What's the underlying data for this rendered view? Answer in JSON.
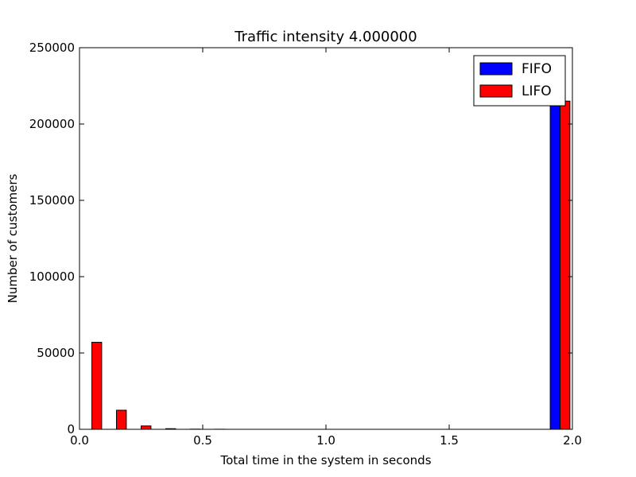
{
  "chart_data": {
    "type": "bar",
    "title": "Traffic intensity 4.000000",
    "xlabel": "Total time in the system in seconds",
    "ylabel": "Number of customers",
    "xlim": [
      0.0,
      2.0
    ],
    "ylim": [
      0,
      250000
    ],
    "x_ticks": [
      "0.0",
      "0.5",
      "1.0",
      "1.5",
      "2.0"
    ],
    "y_ticks": [
      "0",
      "50000",
      "100000",
      "150000",
      "200000",
      "250000"
    ],
    "bin_width": 0.1,
    "bin_starts": [
      0.0,
      0.1,
      0.2,
      0.3,
      0.4,
      0.5,
      0.6,
      0.7,
      0.8,
      0.9,
      1.0,
      1.1,
      1.2,
      1.3,
      1.4,
      1.5,
      1.6,
      1.7,
      1.8,
      1.9
    ],
    "legend_position": "top-right",
    "grid": false,
    "series": [
      {
        "name": "FIFO",
        "color": "#0000ff",
        "values": [
          0,
          0,
          0,
          0,
          0,
          0,
          0,
          0,
          0,
          0,
          0,
          0,
          0,
          0,
          0,
          0,
          0,
          0,
          0,
          215000
        ]
      },
      {
        "name": "LIFO",
        "color": "#ff0000",
        "values": [
          57000,
          12500,
          2200,
          400,
          100,
          50,
          0,
          0,
          0,
          0,
          0,
          0,
          0,
          0,
          0,
          0,
          0,
          0,
          0,
          215000
        ]
      }
    ]
  }
}
